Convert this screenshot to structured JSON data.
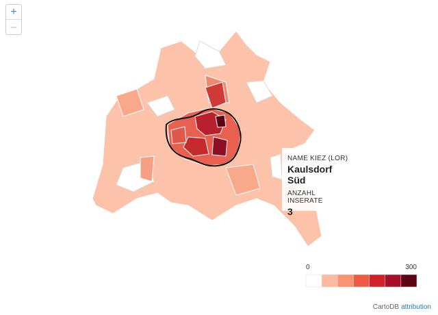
{
  "zoom": {
    "in": "+",
    "out": "–"
  },
  "tooltip": {
    "name_label": "NAME KIEZ (LOR)",
    "name": "Kaulsdorf Süd",
    "count_label": "ANZAHL INSERATE",
    "count": 3
  },
  "legend": {
    "min": 0,
    "max": 300,
    "colors": [
      "#ffffff",
      "#fcbba1",
      "#fc9272",
      "#ef5a44",
      "#d0202a",
      "#a50f28",
      "#5e0414"
    ]
  },
  "attribution": {
    "provider": "CartoDB",
    "link": "attribution"
  }
}
